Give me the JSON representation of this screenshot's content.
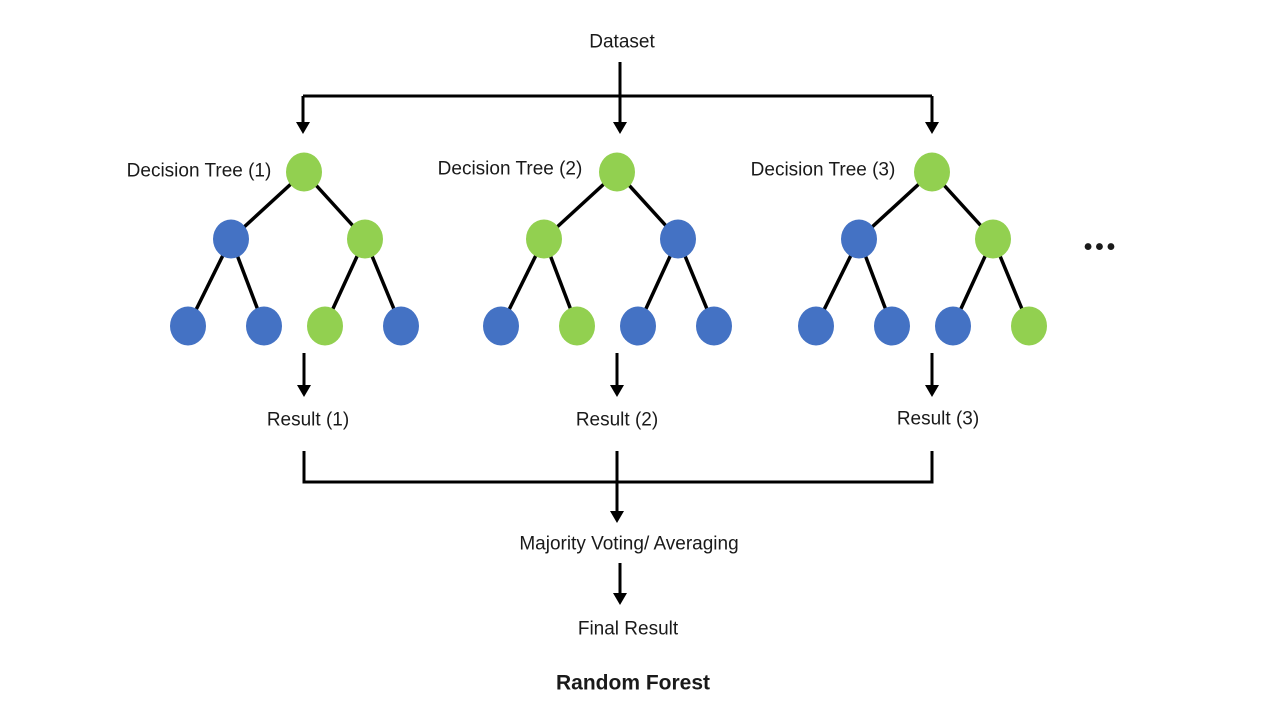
{
  "diagram": {
    "dataset_label": "Dataset",
    "ellipsis": "•••",
    "aggregation_label": "Majority Voting/ Averaging",
    "final_result_label": "Final Result",
    "title": "Random Forest"
  },
  "trees": [
    {
      "label": "Decision Tree (1)",
      "result_label": "Result (1)",
      "root": "green",
      "internal": [
        "blue",
        "green"
      ],
      "leaves": [
        "blue",
        "blue",
        "green",
        "blue"
      ]
    },
    {
      "label": "Decision Tree (2)",
      "result_label": "Result (2)",
      "root": "green",
      "internal": [
        "green",
        "blue"
      ],
      "leaves": [
        "blue",
        "green",
        "blue",
        "blue"
      ]
    },
    {
      "label": "Decision Tree (3)",
      "result_label": "Result (3)",
      "root": "green",
      "internal": [
        "blue",
        "green"
      ],
      "leaves": [
        "blue",
        "blue",
        "blue",
        "green"
      ]
    }
  ],
  "colors": {
    "green": "#92D050",
    "blue": "#4472C4",
    "line": "#000000",
    "text": "#1A1A1A"
  }
}
